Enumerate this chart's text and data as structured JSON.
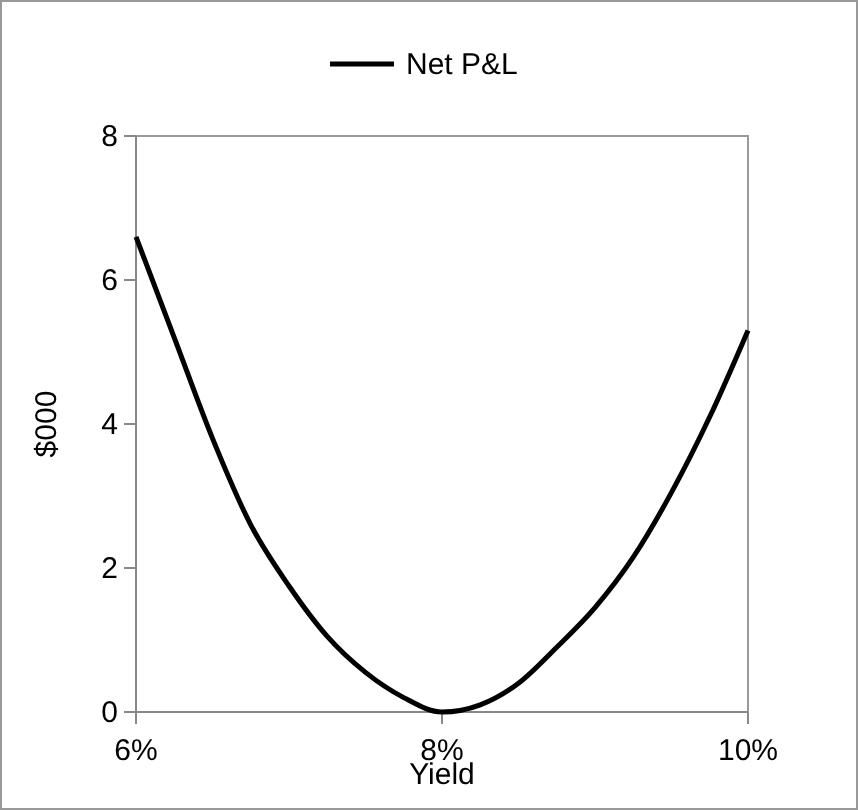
{
  "chart_data": {
    "type": "line",
    "xlabel": "Yield",
    "ylabel": "$000",
    "legend": "top",
    "x": [
      6.0,
      6.25,
      6.5,
      6.75,
      7.0,
      7.25,
      7.5,
      7.75,
      8.0,
      8.25,
      8.5,
      8.75,
      9.0,
      9.25,
      9.5,
      9.75,
      10.0
    ],
    "series": [
      {
        "name": "Net P&L",
        "color": "#000000",
        "values": [
          6.6,
          5.2,
          3.8,
          2.6,
          1.75,
          1.05,
          0.55,
          0.2,
          0.0,
          0.1,
          0.4,
          0.9,
          1.45,
          2.15,
          3.05,
          4.1,
          5.3
        ]
      }
    ],
    "xlim": [
      6,
      10
    ],
    "xticks": [
      {
        "value": 6,
        "label": "6%"
      },
      {
        "value": 8,
        "label": "8%"
      },
      {
        "value": 10,
        "label": "10%"
      }
    ],
    "ylim": [
      0,
      8
    ],
    "yticks": [
      0,
      2,
      4,
      6,
      8
    ],
    "grid": false,
    "marker": "none",
    "line_style": "solid"
  }
}
